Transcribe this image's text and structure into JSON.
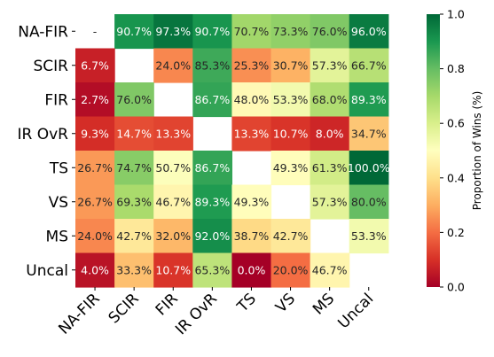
{
  "chart_data": {
    "type": "heatmap",
    "title": "",
    "xlabel": "",
    "ylabel": "",
    "row_labels": [
      "NA-FIR",
      "SCIR",
      "FIR",
      "IR OvR",
      "TS",
      "VS",
      "MS",
      "Uncal"
    ],
    "col_labels": [
      "NA-FIR",
      "SCIR",
      "FIR",
      "IR OvR",
      "TS",
      "VS",
      "MS",
      "Uncal"
    ],
    "values": [
      [
        null,
        0.907,
        0.973,
        0.907,
        0.707,
        0.733,
        0.76,
        0.96
      ],
      [
        0.067,
        null,
        0.24,
        0.853,
        0.253,
        0.307,
        0.573,
        0.667
      ],
      [
        0.027,
        0.76,
        null,
        0.867,
        0.48,
        0.533,
        0.68,
        0.893
      ],
      [
        0.093,
        0.147,
        0.133,
        null,
        0.133,
        0.107,
        0.08,
        0.347
      ],
      [
        0.267,
        0.747,
        0.507,
        0.867,
        null,
        0.493,
        0.613,
        1.0
      ],
      [
        0.267,
        0.693,
        0.467,
        0.893,
        0.493,
        null,
        0.573,
        0.8
      ],
      [
        0.24,
        0.427,
        0.32,
        0.92,
        0.387,
        0.427,
        null,
        0.533
      ],
      [
        0.04,
        0.333,
        0.107,
        0.653,
        0.0,
        0.2,
        0.467,
        null
      ]
    ],
    "cell_labels": [
      [
        "-",
        "90.7%",
        "97.3%",
        "90.7%",
        "70.7%",
        "73.3%",
        "76.0%",
        "96.0%"
      ],
      [
        "6.7%",
        "",
        "24.0%",
        "85.3%",
        "25.3%",
        "30.7%",
        "57.3%",
        "66.7%"
      ],
      [
        "2.7%",
        "76.0%",
        "",
        "86.7%",
        "48.0%",
        "53.3%",
        "68.0%",
        "89.3%"
      ],
      [
        "9.3%",
        "14.7%",
        "13.3%",
        "",
        "13.3%",
        "10.7%",
        "8.0%",
        "34.7%"
      ],
      [
        "26.7%",
        "74.7%",
        "50.7%",
        "86.7%",
        "",
        "49.3%",
        "61.3%",
        "100.0%"
      ],
      [
        "26.7%",
        "69.3%",
        "46.7%",
        "89.3%",
        "49.3%",
        "",
        "57.3%",
        "80.0%"
      ],
      [
        "24.0%",
        "42.7%",
        "32.0%",
        "92.0%",
        "38.7%",
        "42.7%",
        "",
        "53.3%"
      ],
      [
        "4.0%",
        "33.3%",
        "10.7%",
        "65.3%",
        "0.0%",
        "20.0%",
        "46.7%",
        ""
      ]
    ],
    "colorbar": {
      "label": "Proportion of Wins (%)",
      "range": [
        0,
        1
      ],
      "ticks": [
        "0.0",
        "0.2",
        "0.4",
        "0.6",
        "0.8",
        "1.0"
      ],
      "colormap": "RdYlGn"
    },
    "grid": false,
    "legend": "colorbar-right"
  }
}
